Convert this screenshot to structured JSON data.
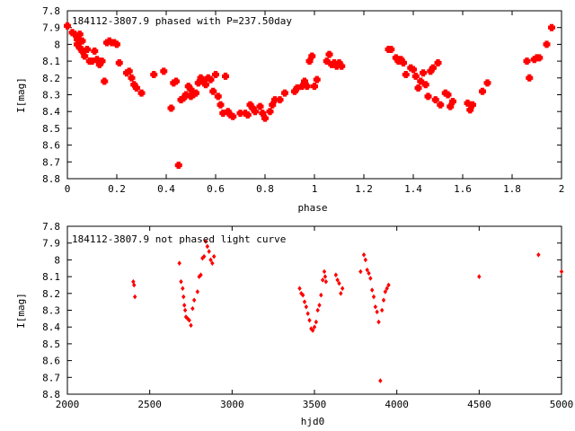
{
  "chart_data": [
    {
      "type": "scatter",
      "title": "184112-3807.9 phased with P=237.50day",
      "xlabel": "phase",
      "ylabel": "I[mag]",
      "xlim": [
        0,
        2
      ],
      "ylim": [
        7.8,
        8.8
      ],
      "y_inverted": true,
      "x_ticks": [
        "0",
        "0.2",
        "0.4",
        "0.6",
        "0.8",
        "1",
        "1.2",
        "1.4",
        "1.6",
        "1.8",
        "2"
      ],
      "y_ticks": [
        "7.8",
        "7.9",
        "8",
        "8.1",
        "8.2",
        "8.3",
        "8.4",
        "8.5",
        "8.6",
        "8.7",
        "8.8"
      ],
      "grid": false,
      "marker_color": "#ff0000",
      "points": [
        [
          0.0,
          7.89
        ],
        [
          0.02,
          7.93
        ],
        [
          0.03,
          7.94
        ],
        [
          0.04,
          7.97
        ],
        [
          0.05,
          7.94
        ],
        [
          0.06,
          7.98
        ],
        [
          0.04,
          8.0
        ],
        [
          0.05,
          8.02
        ],
        [
          0.06,
          8.04
        ],
        [
          0.07,
          8.07
        ],
        [
          0.08,
          8.03
        ],
        [
          0.09,
          8.1
        ],
        [
          0.1,
          8.1
        ],
        [
          0.11,
          8.04
        ],
        [
          0.12,
          8.09
        ],
        [
          0.13,
          8.12
        ],
        [
          0.14,
          8.1
        ],
        [
          0.15,
          8.22
        ],
        [
          0.16,
          7.99
        ],
        [
          0.17,
          7.98
        ],
        [
          0.18,
          7.99
        ],
        [
          0.19,
          7.99
        ],
        [
          0.2,
          8.0
        ],
        [
          0.21,
          8.11
        ],
        [
          0.24,
          8.17
        ],
        [
          0.25,
          8.16
        ],
        [
          0.26,
          8.2
        ],
        [
          0.27,
          8.24
        ],
        [
          0.28,
          8.26
        ],
        [
          0.3,
          8.29
        ],
        [
          0.35,
          8.18
        ],
        [
          0.39,
          8.16
        ],
        [
          0.42,
          8.38
        ],
        [
          0.43,
          8.23
        ],
        [
          0.44,
          8.22
        ],
        [
          0.45,
          8.72
        ],
        [
          0.46,
          8.33
        ],
        [
          0.47,
          8.32
        ],
        [
          0.48,
          8.3
        ],
        [
          0.49,
          8.25
        ],
        [
          0.5,
          8.27
        ],
        [
          0.5,
          8.31
        ],
        [
          0.51,
          8.3
        ],
        [
          0.52,
          8.29
        ],
        [
          0.53,
          8.23
        ],
        [
          0.54,
          8.2
        ],
        [
          0.55,
          8.22
        ],
        [
          0.56,
          8.24
        ],
        [
          0.57,
          8.2
        ],
        [
          0.58,
          8.21
        ],
        [
          0.59,
          8.28
        ],
        [
          0.6,
          8.18
        ],
        [
          0.61,
          8.31
        ],
        [
          0.62,
          8.36
        ],
        [
          0.63,
          8.41
        ],
        [
          0.64,
          8.19
        ],
        [
          0.65,
          8.4
        ],
        [
          0.66,
          8.42
        ],
        [
          0.67,
          8.43
        ],
        [
          0.7,
          8.41
        ],
        [
          0.72,
          8.41
        ],
        [
          0.73,
          8.42
        ],
        [
          0.74,
          8.36
        ],
        [
          0.75,
          8.38
        ],
        [
          0.76,
          8.4
        ],
        [
          0.78,
          8.37
        ],
        [
          0.79,
          8.41
        ],
        [
          0.8,
          8.44
        ],
        [
          0.82,
          8.4
        ],
        [
          0.83,
          8.36
        ],
        [
          0.84,
          8.33
        ],
        [
          0.86,
          8.33
        ],
        [
          0.88,
          8.29
        ],
        [
          0.92,
          8.28
        ],
        [
          0.93,
          8.26
        ],
        [
          0.95,
          8.25
        ],
        [
          0.96,
          8.22
        ],
        [
          0.97,
          8.25
        ],
        [
          0.98,
          8.1
        ],
        [
          0.99,
          8.07
        ],
        [
          1.0,
          8.25
        ],
        [
          1.01,
          8.21
        ],
        [
          1.05,
          8.1
        ],
        [
          1.06,
          8.06
        ],
        [
          1.07,
          8.12
        ],
        [
          1.08,
          8.11
        ],
        [
          1.09,
          8.13
        ],
        [
          1.1,
          8.11
        ],
        [
          1.11,
          8.13
        ],
        [
          1.3,
          8.03
        ],
        [
          1.31,
          8.03
        ],
        [
          1.33,
          8.08
        ],
        [
          1.34,
          8.1
        ],
        [
          1.35,
          8.09
        ],
        [
          1.36,
          8.11
        ],
        [
          1.37,
          8.18
        ],
        [
          1.39,
          8.14
        ],
        [
          1.4,
          8.15
        ],
        [
          1.41,
          8.19
        ],
        [
          1.42,
          8.26
        ],
        [
          1.43,
          8.22
        ],
        [
          1.44,
          8.17
        ],
        [
          1.45,
          8.24
        ],
        [
          1.46,
          8.31
        ],
        [
          1.47,
          8.16
        ],
        [
          1.48,
          8.14
        ],
        [
          1.49,
          8.33
        ],
        [
          1.5,
          8.11
        ],
        [
          1.51,
          8.36
        ],
        [
          1.53,
          8.29
        ],
        [
          1.54,
          8.3
        ],
        [
          1.55,
          8.37
        ],
        [
          1.56,
          8.34
        ],
        [
          1.62,
          8.35
        ],
        [
          1.63,
          8.39
        ],
        [
          1.64,
          8.36
        ],
        [
          1.68,
          8.28
        ],
        [
          1.7,
          8.23
        ],
        [
          1.86,
          8.1
        ],
        [
          1.87,
          8.2
        ],
        [
          1.89,
          8.09
        ],
        [
          1.9,
          8.08
        ],
        [
          1.91,
          8.08
        ],
        [
          1.94,
          8.0
        ],
        [
          1.96,
          7.9
        ]
      ]
    },
    {
      "type": "scatter",
      "title": "184112-3807.9 not phased light curve",
      "xlabel": "hjd0",
      "ylabel": "I[mag]",
      "xlim": [
        2000,
        5000
      ],
      "ylim": [
        7.8,
        8.8
      ],
      "y_inverted": true,
      "x_ticks": [
        "2000",
        "2500",
        "3000",
        "3500",
        "4000",
        "4500",
        "5000"
      ],
      "y_ticks": [
        "7.8",
        "7.9",
        "8",
        "8.1",
        "8.2",
        "8.3",
        "8.4",
        "8.5",
        "8.6",
        "8.7",
        "8.8"
      ],
      "grid": false,
      "marker_color": "#ff0000",
      "points": [
        [
          2400,
          8.13
        ],
        [
          2405,
          8.15
        ],
        [
          2410,
          8.22
        ],
        [
          2680,
          8.02
        ],
        [
          2690,
          8.13
        ],
        [
          2700,
          8.17
        ],
        [
          2705,
          8.22
        ],
        [
          2710,
          8.27
        ],
        [
          2715,
          8.3
        ],
        [
          2720,
          8.34
        ],
        [
          2730,
          8.35
        ],
        [
          2740,
          8.36
        ],
        [
          2750,
          8.39
        ],
        [
          2760,
          8.29
        ],
        [
          2770,
          8.24
        ],
        [
          2790,
          8.19
        ],
        [
          2800,
          8.1
        ],
        [
          2810,
          8.09
        ],
        [
          2820,
          7.99
        ],
        [
          2830,
          7.98
        ],
        [
          2840,
          7.89
        ],
        [
          2850,
          7.92
        ],
        [
          2860,
          7.95
        ],
        [
          2870,
          8.0
        ],
        [
          2880,
          8.02
        ],
        [
          2890,
          7.98
        ],
        [
          3410,
          8.17
        ],
        [
          3420,
          8.2
        ],
        [
          3430,
          8.21
        ],
        [
          3440,
          8.25
        ],
        [
          3450,
          8.28
        ],
        [
          3460,
          8.32
        ],
        [
          3470,
          8.36
        ],
        [
          3480,
          8.41
        ],
        [
          3490,
          8.42
        ],
        [
          3500,
          8.4
        ],
        [
          3510,
          8.37
        ],
        [
          3520,
          8.3
        ],
        [
          3530,
          8.27
        ],
        [
          3540,
          8.21
        ],
        [
          3550,
          8.12
        ],
        [
          3560,
          8.07
        ],
        [
          3565,
          8.1
        ],
        [
          3570,
          8.13
        ],
        [
          3630,
          8.09
        ],
        [
          3640,
          8.12
        ],
        [
          3650,
          8.14
        ],
        [
          3660,
          8.2
        ],
        [
          3670,
          8.17
        ],
        [
          3780,
          8.07
        ],
        [
          3800,
          7.97
        ],
        [
          3810,
          8.0
        ],
        [
          3820,
          8.06
        ],
        [
          3830,
          8.08
        ],
        [
          3840,
          8.11
        ],
        [
          3850,
          8.18
        ],
        [
          3860,
          8.22
        ],
        [
          3870,
          8.28
        ],
        [
          3880,
          8.31
        ],
        [
          3890,
          8.37
        ],
        [
          3900,
          8.72
        ],
        [
          3910,
          8.3
        ],
        [
          3920,
          8.24
        ],
        [
          3930,
          8.19
        ],
        [
          3940,
          8.17
        ],
        [
          3950,
          8.15
        ],
        [
          4500,
          8.1
        ],
        [
          4860,
          7.97
        ],
        [
          5000,
          8.07
        ]
      ]
    }
  ]
}
